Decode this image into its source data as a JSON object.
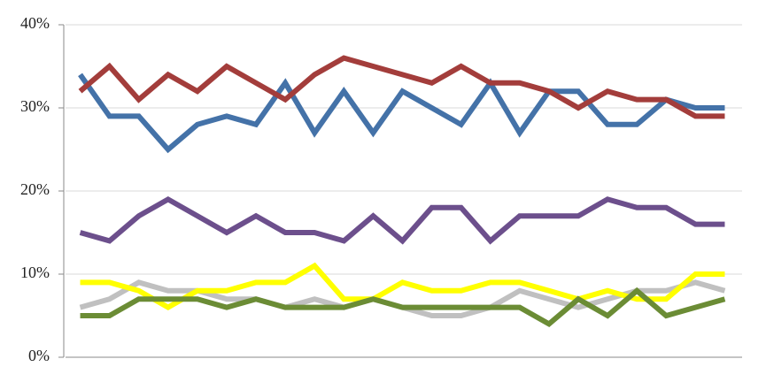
{
  "chart_data": {
    "type": "line",
    "categories": [
      null,
      null,
      null,
      null,
      null,
      null,
      null,
      null,
      null,
      null,
      null,
      null,
      null,
      null,
      null,
      null,
      null,
      null,
      null,
      null,
      null,
      null,
      null
    ],
    "series": [
      {
        "color": "#4472a8",
        "values": [
          34,
          29,
          29,
          25,
          28,
          29,
          28,
          33,
          27,
          32,
          27,
          32,
          30,
          28,
          33,
          27,
          32,
          32,
          28,
          28,
          31,
          30,
          30
        ]
      },
      {
        "color": "#a33d3b",
        "values": [
          32,
          35,
          31,
          34,
          32,
          35,
          33,
          31,
          34,
          36,
          35,
          34,
          33,
          35,
          33,
          33,
          32,
          30,
          32,
          31,
          31,
          29,
          29
        ]
      },
      {
        "color": "#6c4f8c",
        "values": [
          15,
          14,
          17,
          19,
          17,
          15,
          17,
          15,
          15,
          14,
          17,
          14,
          18,
          18,
          14,
          17,
          17,
          17,
          19,
          18,
          18,
          16,
          16
        ]
      },
      {
        "color": "#c0c0c0",
        "values": [
          6,
          7,
          9,
          8,
          8,
          7,
          7,
          6,
          7,
          6,
          7,
          6,
          5,
          5,
          6,
          8,
          7,
          6,
          7,
          8,
          8,
          9,
          8
        ]
      },
      {
        "color": "#ffff00",
        "values": [
          9,
          9,
          8,
          6,
          8,
          8,
          9,
          9,
          11,
          7,
          7,
          9,
          8,
          8,
          9,
          9,
          8,
          7,
          8,
          7,
          7,
          10,
          10
        ]
      },
      {
        "color": "#6b8c35",
        "values": [
          5,
          5,
          7,
          7,
          7,
          6,
          7,
          6,
          6,
          6,
          7,
          6,
          6,
          6,
          6,
          6,
          4,
          7,
          5,
          8,
          5,
          6,
          7
        ]
      }
    ],
    "ylim": [
      0,
      40
    ],
    "yticks": [
      {
        "value": 0,
        "label": "0%"
      },
      {
        "value": 10,
        "label": "10%"
      },
      {
        "value": 20,
        "label": "20%"
      },
      {
        "value": 30,
        "label": "30%"
      },
      {
        "value": 40,
        "label": "40%"
      }
    ],
    "grid": true
  }
}
